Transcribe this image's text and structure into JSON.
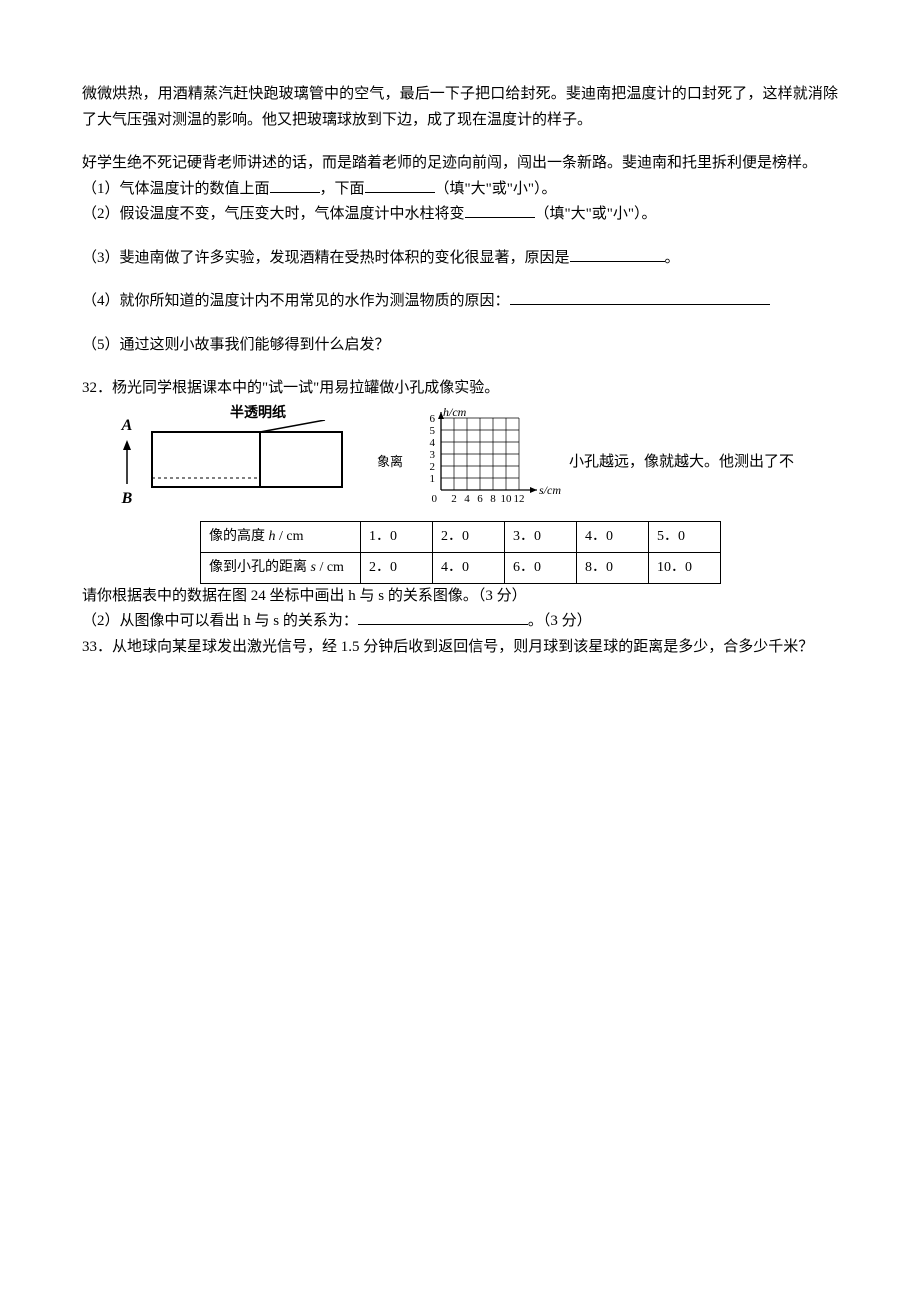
{
  "intro": {
    "p1": "微微烘热，用酒精蒸汽赶快跑玻璃管中的空气，最后一下子把口给封死。斐迪南把温度计的口封死了，这样就消除了大气压强对测温的影响。他又把玻璃球放到下边，成了现在温度计的样子。",
    "p2": "好学生绝不死记硬背老师讲述的话，而是踏着老师的足迹向前闯，闯出一条新路。斐迪南和托里拆利便是榜样。"
  },
  "q_parts": {
    "part1_prefix": "（1）气体温度计的数值上面",
    "part1_mid": "，下面",
    "part1_suffix": "（填\"大\"或\"小\"）。",
    "part2_prefix": "（2）假设温度不变，气压变大时，气体温度计中水柱将变",
    "part2_suffix": "（填\"大\"或\"小\"）。",
    "part3_prefix": "（3）斐迪南做了许多实验，发现酒精在受热时体积的变化很显著，原因是",
    "part3_suffix": "。",
    "part4_prefix": "（4）就你所知道的温度计内不用常见的水作为测温物质的原因：",
    "part5": "（5）通过这则小故事我们能够得到什么启发？"
  },
  "q32": {
    "title": "32．杨光同学根据课本中的\"试一试\"用易拉罐做小孔成像实验。",
    "diagram_label": "半透明纸",
    "mid_text": "象离",
    "after_text": "小孔越远，像就越大。他测出了不",
    "arrow_top": "A",
    "arrow_bottom": "B",
    "chart": {
      "ylabel": "h/cm",
      "xlabel": "s/cm",
      "yticks": [
        "1",
        "2",
        "3",
        "4",
        "5",
        "6"
      ],
      "xticks": [
        "2",
        "4",
        "6",
        "8",
        "10",
        "12"
      ],
      "grid_color": "#000000",
      "background_color": "#ffffff"
    },
    "table": {
      "row1_header": "像的高度 h / cm",
      "row1_data": [
        "1．0",
        "2．0",
        "3．0",
        "4．0",
        "5．0"
      ],
      "row2_header": "像到小孔的距离 s / cm",
      "row2_data": [
        "2．0",
        "4．0",
        "6．0",
        "8．0",
        "10．0"
      ]
    },
    "task1": "请你根据表中的数据在图 24 坐标中画出 h 与 s 的关系图像。（3 分）",
    "task2_prefix": "（2）从图像中可以看出 h 与 s 的关系为：",
    "task2_suffix": "。（3 分）"
  },
  "q33": {
    "text": "33．从地球向某星球发出激光信号，经 1.5 分钟后收到返回信号，则月球到该星球的距离是多少，合多少千米？"
  }
}
